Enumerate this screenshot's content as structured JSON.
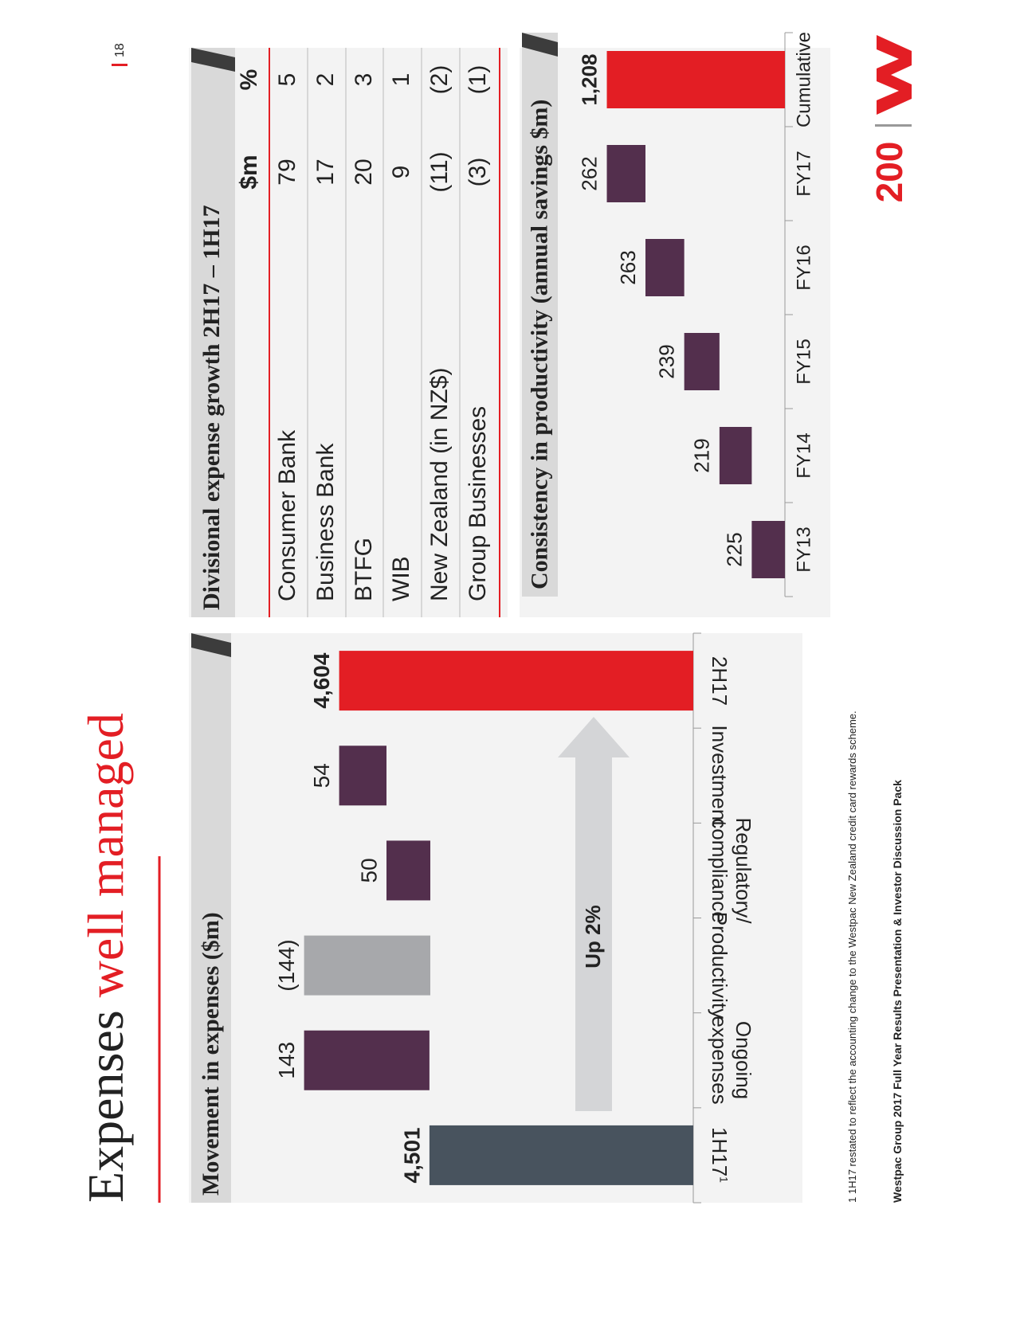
{
  "header": {
    "title_black": "Expenses",
    "title_red": "well managed",
    "page_number": "18"
  },
  "chart_data": [
    {
      "type": "waterfall",
      "title": "Movement in expenses ($m)",
      "categories": [
        "1H17",
        "Ongoing expenses",
        "Productivity",
        "Regulatory/ compliance",
        "Investment",
        "2H17"
      ],
      "footnote_ref": "1",
      "values": [
        4501,
        143,
        -144,
        50,
        54,
        4604
      ],
      "value_labels": [
        "4,501",
        "143",
        "(144)",
        "50",
        "54",
        "4,604"
      ],
      "is_total": [
        true,
        false,
        false,
        false,
        false,
        true
      ],
      "colors": [
        "#48535e",
        "#532f4d",
        "#a7a8ab",
        "#532f4d",
        "#532f4d",
        "#e31e24"
      ],
      "annotation": "Up 2%",
      "ylim": [
        4200,
        4700
      ]
    },
    {
      "type": "waterfall",
      "title": "Consistency in productivity (annual savings $m)",
      "categories": [
        "FY13",
        "FY14",
        "FY15",
        "FY16",
        "FY17",
        "Cumulative"
      ],
      "values": [
        225,
        219,
        239,
        263,
        262,
        1208
      ],
      "value_labels": [
        "225",
        "219",
        "239",
        "263",
        "262",
        "1,208"
      ],
      "is_total": [
        false,
        false,
        false,
        false,
        false,
        true
      ],
      "colors": [
        "#532f4d",
        "#532f4d",
        "#532f4d",
        "#532f4d",
        "#532f4d",
        "#e31e24"
      ],
      "ylim": [
        0,
        1400
      ]
    }
  ],
  "table": {
    "title": "Divisional expense growth 2H17 – 1H17",
    "columns": [
      "$m",
      "%"
    ],
    "rows": [
      [
        "Consumer Bank",
        "79",
        "5"
      ],
      [
        "Business Bank",
        "17",
        "2"
      ],
      [
        "BTFG",
        "20",
        "3"
      ],
      [
        "WIB",
        "9",
        "1"
      ],
      [
        "New Zealand (in NZ$)",
        "(11)",
        "(2)"
      ],
      [
        "Group Businesses",
        "(3)",
        "(1)"
      ]
    ]
  },
  "footnote": {
    "marker": "1",
    "text": "1H17 restated to reflect the accounting change to the Westpac New Zealand credit card rewards scheme."
  },
  "footer": "Westpac Group 2017 Full Year Results Presentation & Investor Discussion Pack",
  "logo": {
    "text": "200"
  }
}
